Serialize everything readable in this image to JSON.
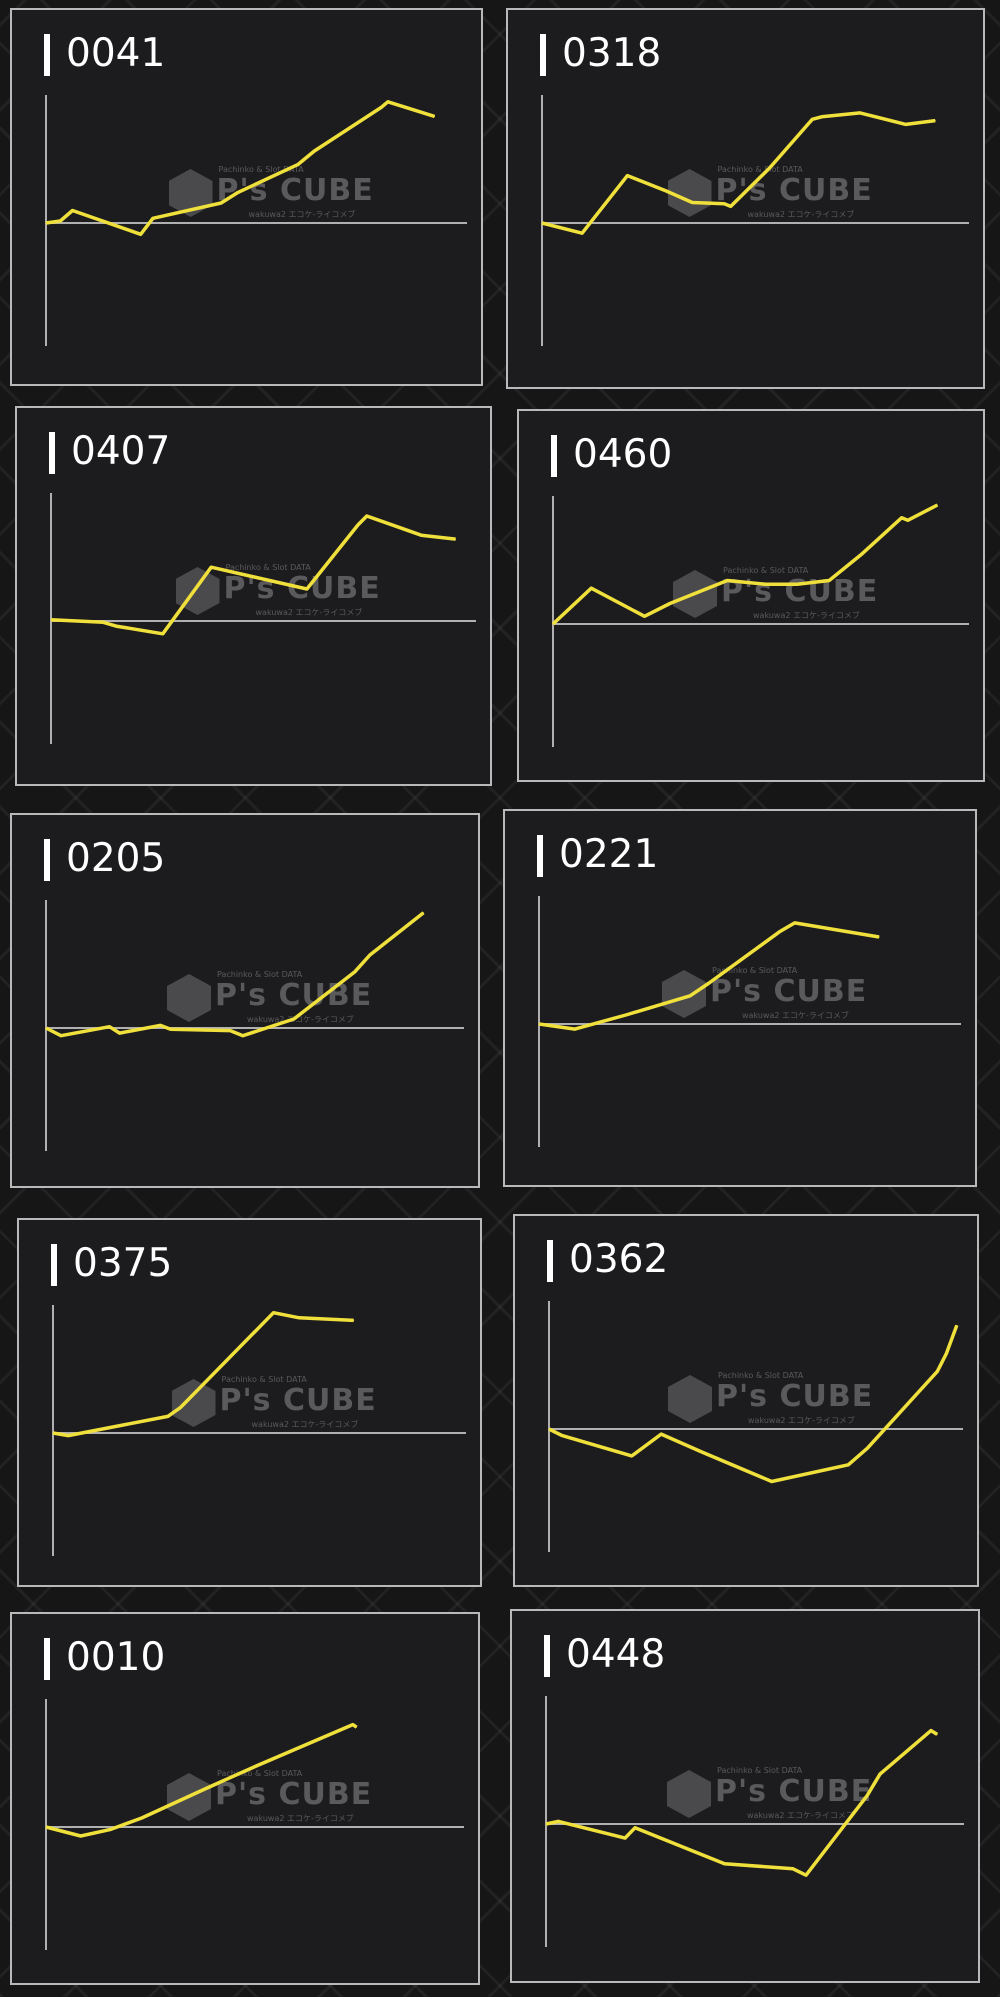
{
  "watermark": {
    "brand": "P's CUBE",
    "tagline": "Pachinko & Slot DATA",
    "subline": "wakuwa2 エコケ-ライコメブ"
  },
  "line_color": "#f0e03c",
  "axis_color": "#b0b0b0",
  "chart_data": [
    {
      "type": "line",
      "title": "0041",
      "xlim": [
        0,
        100
      ],
      "ylim": [
        -100,
        100
      ],
      "baseline": 0,
      "x": [
        0,
        3.4,
        6.3,
        22.5,
        25.4,
        41.6,
        45.6,
        59.8,
        63.7,
        79.6,
        81.2,
        92.3
      ],
      "y": [
        0,
        1.6,
        9.8,
        -8.8,
        3.7,
        15.6,
        23.9,
        45.6,
        56.2,
        90.2,
        94.7,
        83.3
      ]
    },
    {
      "type": "line",
      "title": "0318",
      "xlim": [
        0,
        100
      ],
      "ylim": [
        -100,
        100
      ],
      "baseline": 0,
      "x": [
        0,
        9.4,
        20,
        29.1,
        35.2,
        42.7,
        44.2,
        53.3,
        63.3,
        65.5,
        74.5,
        85.2,
        92.1
      ],
      "y": [
        0,
        -8,
        37,
        25,
        16,
        15,
        13,
        43,
        81,
        83,
        86,
        77,
        80
      ]
    },
    {
      "type": "line",
      "title": "0407",
      "xlim": [
        0,
        100
      ],
      "ylim": [
        -100,
        100
      ],
      "baseline": 0,
      "x": [
        0,
        12.3,
        15.3,
        26.3,
        37.7,
        60.2,
        72.2,
        74.3,
        87.1,
        95.2
      ],
      "y": [
        1,
        -1,
        -4,
        -10,
        42,
        25,
        75,
        82,
        67,
        64
      ]
    },
    {
      "type": "line",
      "title": "0460",
      "xlim": [
        0,
        100
      ],
      "ylim": [
        -100,
        100
      ],
      "baseline": 0,
      "x": [
        0,
        9.2,
        22,
        28.1,
        41.9,
        51.1,
        58.7,
        66.4,
        74,
        83.8,
        85.3,
        92.4
      ],
      "y": [
        0,
        28,
        6,
        16,
        34,
        31,
        31,
        34,
        54,
        83,
        81,
        93
      ]
    },
    {
      "type": "line",
      "title": "0205",
      "xlim": [
        0,
        100
      ],
      "ylim": [
        -100,
        100
      ],
      "baseline": 0,
      "x": [
        0,
        3.6,
        15.2,
        17.6,
        27.4,
        29.8,
        44.1,
        47.1,
        59.3,
        73.9,
        77.5,
        90.3
      ],
      "y": [
        0,
        -6,
        1,
        -4,
        2,
        -1,
        -2,
        -6,
        7,
        44,
        57,
        90
      ]
    },
    {
      "type": "line",
      "title": "0221",
      "xlim": [
        0,
        100
      ],
      "ylim": [
        -100,
        100
      ],
      "baseline": 0,
      "x": [
        0,
        8.5,
        20.6,
        35.8,
        40.3,
        57,
        60.6,
        80.6
      ],
      "y": [
        0,
        -4,
        7,
        22,
        32,
        72,
        79,
        68
      ]
    },
    {
      "type": "line",
      "title": "0375",
      "xlim": [
        0,
        100
      ],
      "ylim": [
        -100,
        100
      ],
      "baseline": 0,
      "x": [
        0,
        3.7,
        27.8,
        30.9,
        53.4,
        59.6,
        72.8
      ],
      "y": [
        0,
        -2,
        13,
        20,
        94,
        90,
        88
      ]
    },
    {
      "type": "line",
      "title": "0362",
      "xlim": [
        0,
        100
      ],
      "ylim": [
        -100,
        100
      ],
      "baseline": 0,
      "x": [
        0,
        3.1,
        20,
        27.1,
        36.9,
        53.8,
        72.3,
        76.9,
        93.8,
        96,
        98.5
      ],
      "y": [
        0,
        -5,
        -21,
        -4,
        -18,
        -41,
        -28,
        -15,
        45,
        59,
        81
      ]
    },
    {
      "type": "line",
      "title": "0010",
      "xlim": [
        0,
        100
      ],
      "ylim": [
        -100,
        100
      ],
      "baseline": 0,
      "x": [
        0,
        8.3,
        15.3,
        22.9,
        38.2,
        50.5,
        73.4,
        74.3
      ],
      "y": [
        0,
        -7,
        -2,
        7,
        30,
        48,
        80,
        78
      ]
    },
    {
      "type": "line",
      "title": "0448",
      "xlim": [
        0,
        100
      ],
      "ylim": [
        -100,
        100
      ],
      "baseline": 0,
      "x": [
        0,
        3,
        18.9,
        21.3,
        42.7,
        59.1,
        62.2,
        76.8,
        79.9,
        92.1,
        93.6
      ],
      "y": [
        0,
        2,
        -11,
        -3,
        -31,
        -35,
        -40,
        22,
        39,
        73,
        70
      ]
    }
  ]
}
